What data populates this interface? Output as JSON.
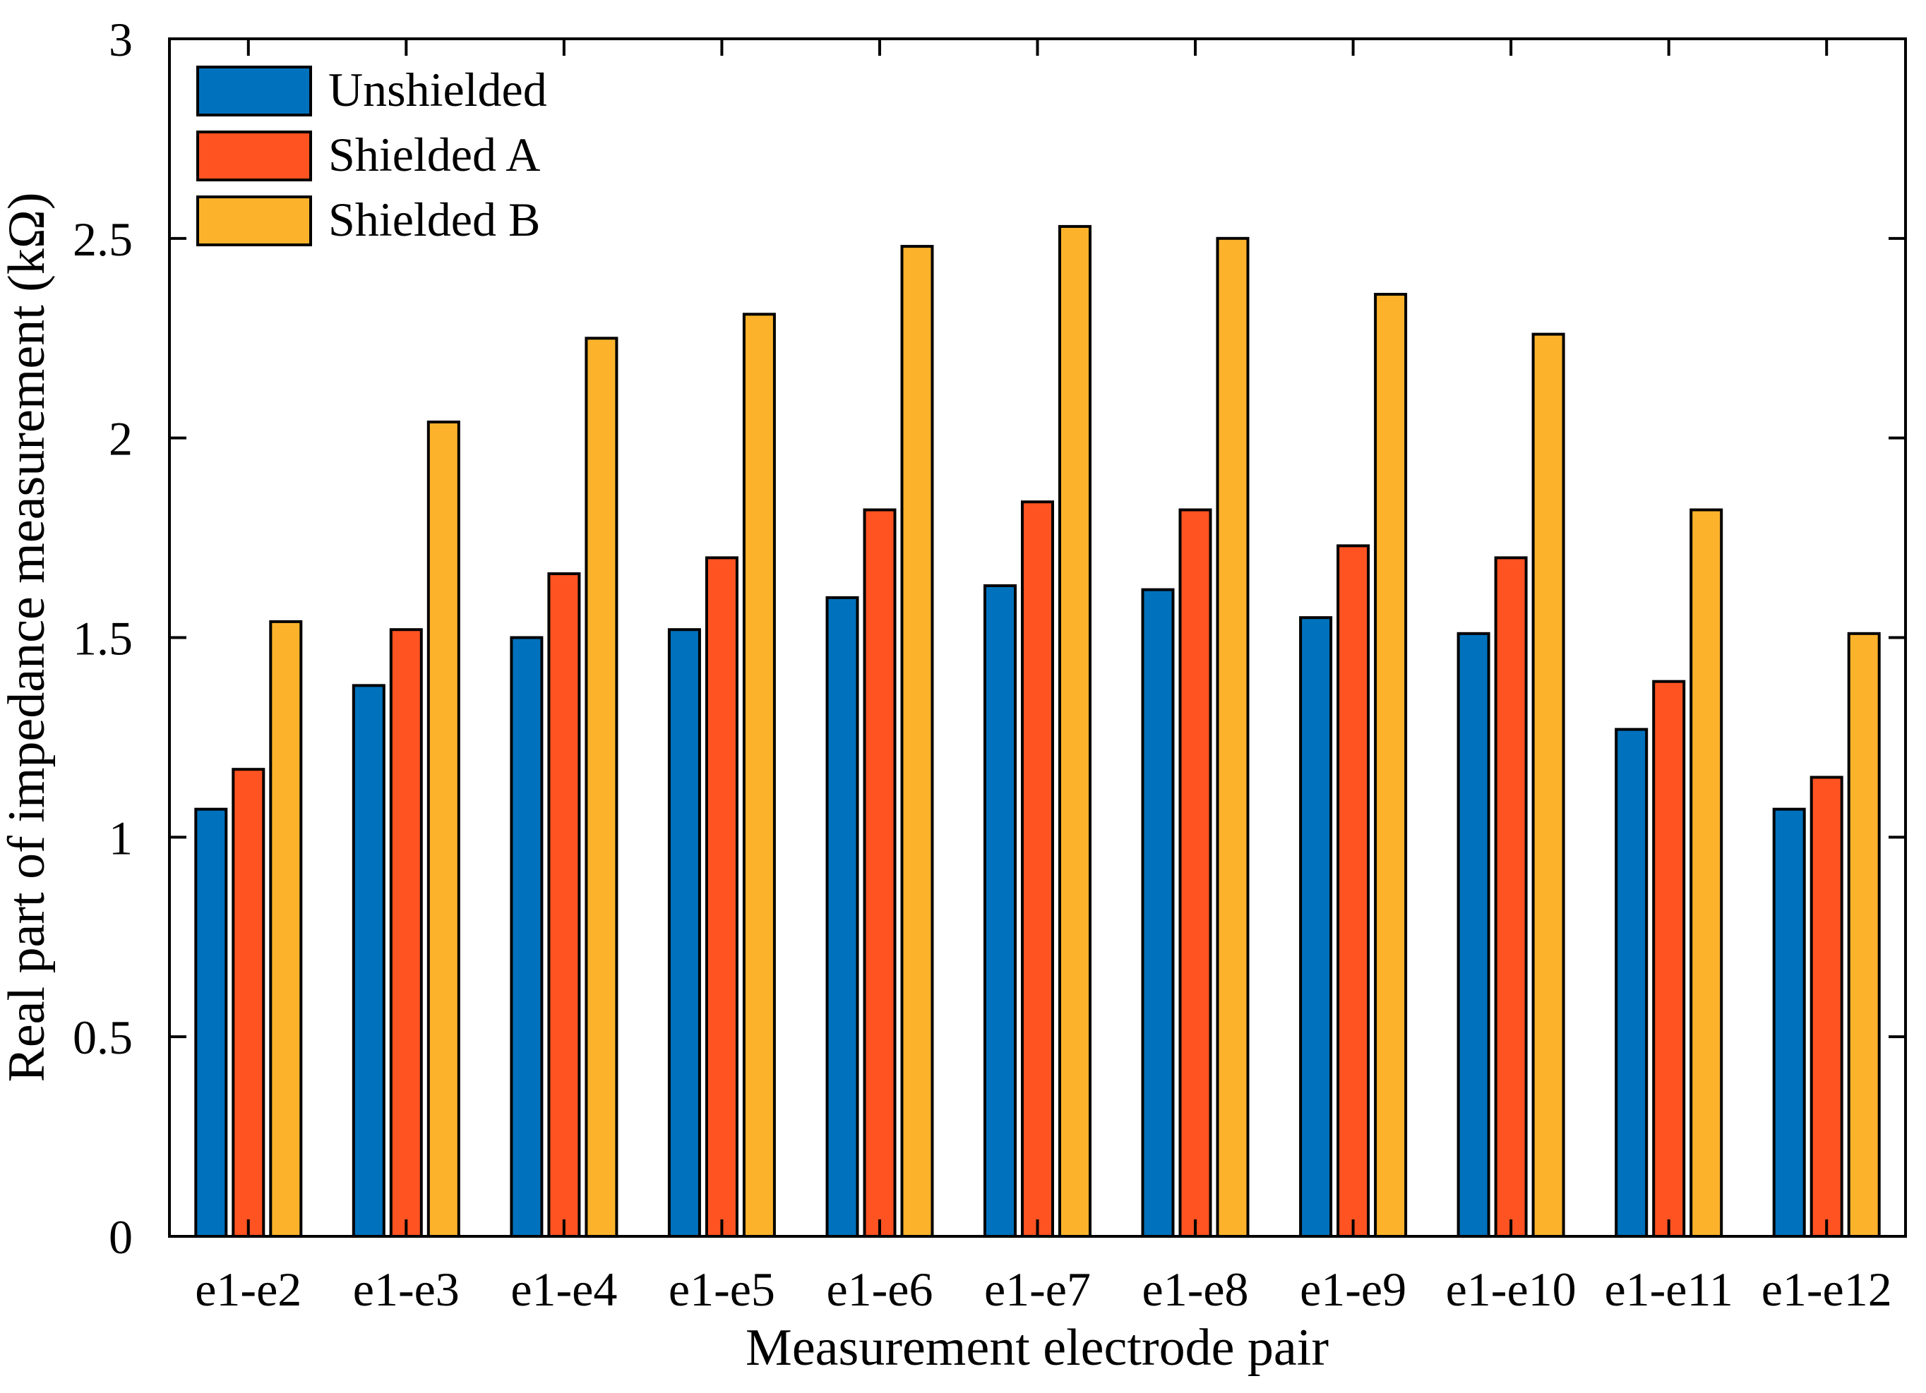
{
  "figure": {
    "background": "#ffffff",
    "axis_color": "#000000"
  },
  "chart_data": {
    "type": "bar",
    "title": "",
    "xlabel": "Measurement electrode pair",
    "ylabel": "Real part of impedance measurement (kΩ)",
    "categories": [
      "e1-e2",
      "e1-e3",
      "e1-e4",
      "e1-e5",
      "e1-e6",
      "e1-e7",
      "e1-e8",
      "e1-e9",
      "e1-e10",
      "e1-e11",
      "e1-e12"
    ],
    "series": [
      {
        "name": "Unshielded",
        "color": "#0072BD",
        "values": [
          1.07,
          1.38,
          1.5,
          1.52,
          1.6,
          1.63,
          1.62,
          1.55,
          1.51,
          1.27,
          1.07
        ]
      },
      {
        "name": "Shielded A",
        "color": "#FF5322",
        "values": [
          1.17,
          1.52,
          1.66,
          1.7,
          1.82,
          1.84,
          1.82,
          1.73,
          1.7,
          1.39,
          1.15
        ]
      },
      {
        "name": "Shielded B",
        "color": "#FCB32B",
        "values": [
          1.54,
          2.04,
          2.25,
          2.31,
          2.48,
          2.53,
          2.5,
          2.36,
          2.26,
          1.82,
          1.51
        ]
      }
    ],
    "bar_edge_color": "#000000",
    "ylim": [
      0,
      3
    ],
    "yticks": [
      0,
      0.5,
      1,
      1.5,
      2,
      2.5,
      3
    ],
    "ytick_labels": [
      "0",
      "0.5",
      "1",
      "1.5",
      "2",
      "2.5",
      "3"
    ],
    "grid": false,
    "legend_position": "top-left"
  }
}
